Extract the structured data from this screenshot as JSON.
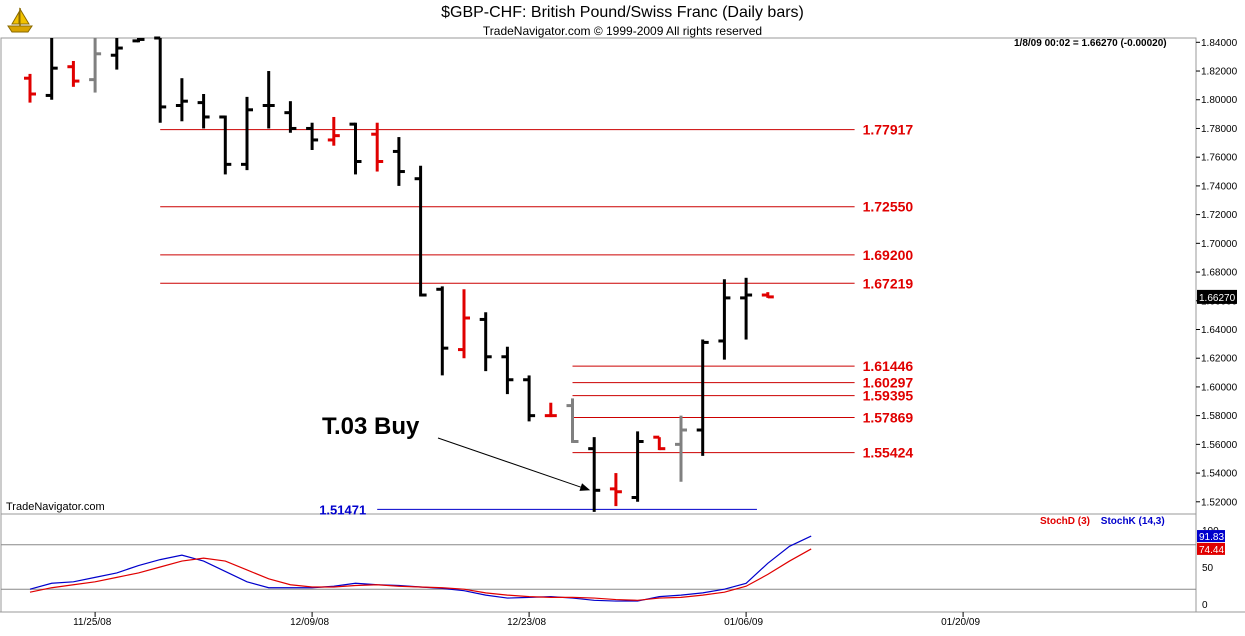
{
  "header": {
    "title": "$GBP-CHF:  British Pound/Swiss Franc  (Daily bars)",
    "subtitle": "TradeNavigator.com © 1999-2009 All rights reserved",
    "readout": "1/8/09 00:02 = 1.66270 (-0.00020)",
    "watermark": "TradeNavigator.com",
    "logo_icon": "trade-navigator-ship-icon"
  },
  "colors": {
    "up_bar": "#000000",
    "down_bar": "#e00000",
    "neutral_bar": "#808080",
    "level_line": "#cc0000",
    "level_label": "#e00000",
    "support_line": "#0000cc",
    "stoch_d": "#e00000",
    "stoch_k": "#0000cc"
  },
  "chart_data": [
    {
      "type": "ohlc",
      "y_axis_ticks": [
        "1.84000",
        "1.82000",
        "1.80000",
        "1.78000",
        "1.76000",
        "1.74000",
        "1.72000",
        "1.70000",
        "1.68000",
        "1.66000",
        "1.64000",
        "1.62000",
        "1.60000",
        "1.58000",
        "1.56000",
        "1.54000",
        "1.52000"
      ],
      "ylim": [
        1.5115,
        1.843
      ],
      "x_tick_labels": [
        {
          "label": "11/25/08",
          "index": 3
        },
        {
          "label": "12/09/08",
          "index": 13
        },
        {
          "label": "12/23/08",
          "index": 23
        },
        {
          "label": "01/06/09",
          "index": 33
        },
        {
          "label": "01/20/09",
          "index": 43
        }
      ],
      "last_price_label": "1.66270",
      "bars": [
        {
          "date": "11/20/08",
          "open": 1.815,
          "high": 1.818,
          "low": 1.798,
          "close": 1.804,
          "color": "down"
        },
        {
          "date": "11/21/08",
          "open": 1.803,
          "high": 1.843,
          "low": 1.8,
          "close": 1.822,
          "color": "up"
        },
        {
          "date": "11/24/08",
          "open": 1.823,
          "high": 1.827,
          "low": 1.809,
          "close": 1.813,
          "color": "down"
        },
        {
          "date": "11/25/08",
          "open": 1.814,
          "high": 1.843,
          "low": 1.805,
          "close": 1.832,
          "color": "neutral"
        },
        {
          "date": "11/26/08",
          "open": 1.831,
          "high": 1.843,
          "low": 1.821,
          "close": 1.836,
          "color": "up"
        },
        {
          "date": "11/27/08",
          "open": 1.841,
          "high": 1.843,
          "low": 1.84,
          "close": 1.842,
          "color": "up"
        },
        {
          "date": "11/28/08",
          "open": 1.843,
          "high": 1.843,
          "low": 1.784,
          "close": 1.795,
          "color": "up"
        },
        {
          "date": "12/01/08",
          "open": 1.796,
          "high": 1.815,
          "low": 1.785,
          "close": 1.799,
          "color": "up"
        },
        {
          "date": "12/02/08",
          "open": 1.798,
          "high": 1.804,
          "low": 1.78,
          "close": 1.788,
          "color": "up"
        },
        {
          "date": "12/03/08",
          "open": 1.788,
          "high": 1.789,
          "low": 1.748,
          "close": 1.755,
          "color": "up"
        },
        {
          "date": "12/04/08",
          "open": 1.755,
          "high": 1.802,
          "low": 1.751,
          "close": 1.793,
          "color": "up"
        },
        {
          "date": "12/05/08",
          "open": 1.796,
          "high": 1.82,
          "low": 1.78,
          "close": 1.796,
          "color": "up"
        },
        {
          "date": "12/08/08",
          "open": 1.791,
          "high": 1.799,
          "low": 1.777,
          "close": 1.78,
          "color": "up"
        },
        {
          "date": "12/09/08",
          "open": 1.78,
          "high": 1.784,
          "low": 1.765,
          "close": 1.772,
          "color": "up"
        },
        {
          "date": "12/10/08",
          "open": 1.772,
          "high": 1.788,
          "low": 1.768,
          "close": 1.775,
          "color": "down"
        },
        {
          "date": "12/11/08",
          "open": 1.783,
          "high": 1.784,
          "low": 1.748,
          "close": 1.757,
          "color": "up"
        },
        {
          "date": "12/12/08",
          "open": 1.776,
          "high": 1.784,
          "low": 1.75,
          "close": 1.757,
          "color": "down"
        },
        {
          "date": "12/15/08",
          "open": 1.764,
          "high": 1.774,
          "low": 1.74,
          "close": 1.75,
          "color": "up"
        },
        {
          "date": "12/16/08",
          "open": 1.745,
          "high": 1.754,
          "low": 1.663,
          "close": 1.664,
          "color": "up"
        },
        {
          "date": "12/17/08",
          "open": 1.668,
          "high": 1.67,
          "low": 1.608,
          "close": 1.627,
          "color": "up"
        },
        {
          "date": "12/18/08",
          "open": 1.626,
          "high": 1.668,
          "low": 1.62,
          "close": 1.648,
          "color": "down"
        },
        {
          "date": "12/19/08",
          "open": 1.647,
          "high": 1.652,
          "low": 1.611,
          "close": 1.621,
          "color": "up"
        },
        {
          "date": "12/22/08",
          "open": 1.621,
          "high": 1.628,
          "low": 1.595,
          "close": 1.605,
          "color": "up"
        },
        {
          "date": "12/23/08",
          "open": 1.605,
          "high": 1.608,
          "low": 1.576,
          "close": 1.58,
          "color": "up"
        },
        {
          "date": "12/24/08",
          "open": 1.58,
          "high": 1.589,
          "low": 1.579,
          "close": 1.58,
          "color": "down"
        },
        {
          "date": "12/25/08",
          "open": 1.587,
          "high": 1.592,
          "low": 1.561,
          "close": 1.562,
          "color": "neutral"
        },
        {
          "date": "12/26/08",
          "open": 1.557,
          "high": 1.565,
          "low": 1.513,
          "close": 1.528,
          "color": "up"
        },
        {
          "date": "12/29/08",
          "open": 1.529,
          "high": 1.54,
          "low": 1.517,
          "close": 1.527,
          "color": "down"
        },
        {
          "date": "12/30/08",
          "open": 1.523,
          "high": 1.569,
          "low": 1.52,
          "close": 1.562,
          "color": "up"
        },
        {
          "date": "12/31/08",
          "open": 1.565,
          "high": 1.565,
          "low": 1.556,
          "close": 1.557,
          "color": "down"
        },
        {
          "date": "01/01/09",
          "open": 1.56,
          "high": 1.58,
          "low": 1.534,
          "close": 1.57,
          "color": "neutral"
        },
        {
          "date": "01/02/09",
          "open": 1.57,
          "high": 1.633,
          "low": 1.552,
          "close": 1.631,
          "color": "up"
        },
        {
          "date": "01/05/09",
          "open": 1.632,
          "high": 1.675,
          "low": 1.619,
          "close": 1.662,
          "color": "up"
        },
        {
          "date": "01/06/09",
          "open": 1.662,
          "high": 1.676,
          "low": 1.633,
          "close": 1.664,
          "color": "up"
        },
        {
          "date": "01/07/09",
          "open": 1.664,
          "high": 1.666,
          "low": 1.662,
          "close": 1.6627,
          "color": "down"
        }
      ],
      "levels": [
        {
          "value": 1.77917,
          "label": "1.77917",
          "color": "red",
          "from_index": 6,
          "to_index": 38
        },
        {
          "value": 1.7255,
          "label": "1.72550",
          "color": "red",
          "from_index": 6,
          "to_index": 38
        },
        {
          "value": 1.692,
          "label": "1.69200",
          "color": "red",
          "from_index": 6,
          "to_index": 38
        },
        {
          "value": 1.67219,
          "label": "1.67219",
          "color": "red",
          "from_index": 6,
          "to_index": 38
        },
        {
          "value": 1.61446,
          "label": "1.61446",
          "color": "red",
          "from_index": 25,
          "to_index": 38
        },
        {
          "value": 1.60297,
          "label": "1.60297",
          "color": "red",
          "from_index": 25,
          "to_index": 38
        },
        {
          "value": 1.59395,
          "label": "1.59395",
          "color": "red",
          "from_index": 25,
          "to_index": 38
        },
        {
          "value": 1.57869,
          "label": "1.57869",
          "color": "red",
          "from_index": 25,
          "to_index": 38
        },
        {
          "value": 1.55424,
          "label": "1.55424",
          "color": "red",
          "from_index": 25,
          "to_index": 38
        },
        {
          "value": 1.51471,
          "label": "1.51471",
          "color": "blue",
          "from_index": 16,
          "to_index": 33.5
        }
      ],
      "annotation": {
        "text": "T.03 Buy",
        "points_to_index": 26,
        "points_to_value": 1.528
      }
    },
    {
      "type": "line",
      "legend": [
        {
          "name": "StochD (3)",
          "color": "red"
        },
        {
          "name": "StochK (14,3)",
          "color": "blue"
        }
      ],
      "y_axis_ticks": [
        "100",
        "50",
        "0"
      ],
      "ylim": [
        0,
        100
      ],
      "last_values": {
        "stoch_k": "91.83",
        "stoch_d": "74.44"
      },
      "series": [
        {
          "name": "StochK (14,3)",
          "values": [
            20,
            28,
            30,
            36,
            42,
            52,
            60,
            66,
            58,
            44,
            30,
            22,
            22,
            22,
            24,
            28,
            26,
            25,
            23,
            21,
            18,
            12,
            8,
            9,
            10,
            8,
            5,
            4,
            4,
            10,
            12,
            15,
            20,
            28,
            55,
            78,
            91.83
          ]
        },
        {
          "name": "StochD (3)",
          "values": [
            16,
            22,
            26,
            30,
            36,
            42,
            50,
            58,
            62,
            58,
            46,
            34,
            26,
            23,
            23,
            25,
            26,
            24,
            23,
            22,
            20,
            15,
            12,
            10,
            9,
            9,
            8,
            6,
            5,
            8,
            9,
            12,
            16,
            24,
            40,
            58,
            74.44
          ]
        }
      ]
    }
  ]
}
